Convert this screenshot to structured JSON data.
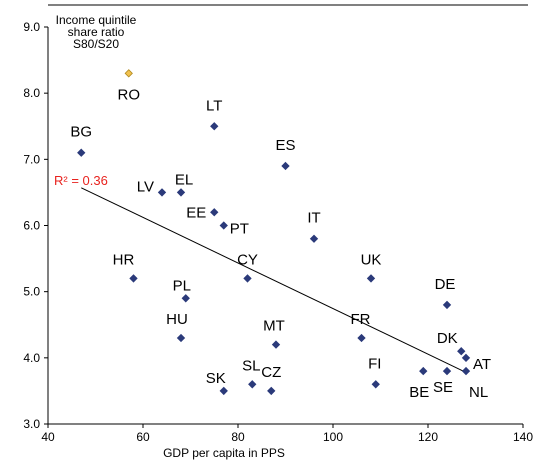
{
  "chart_data": {
    "type": "scatter",
    "title": "",
    "ylabel_lines": [
      "Income quintile",
      "share ratio",
      "S80/S20"
    ],
    "xlabel": "GDP per capita in PPS",
    "xlim": [
      40,
      140
    ],
    "ylim": [
      3.0,
      9.0
    ],
    "x_ticks": [
      40,
      60,
      80,
      100,
      120,
      140
    ],
    "y_ticks": [
      "3.0",
      "4.0",
      "5.0",
      "6.0",
      "7.0",
      "8.0",
      "9.0"
    ],
    "grid": false,
    "highlight_color": "#f2c14e",
    "marker_color": "#2b3a7a",
    "r2_color": "#e8231f",
    "r2_label": "R² = 0.36",
    "trendline": {
      "x": [
        47,
        128
      ],
      "y": [
        6.57,
        3.78
      ]
    },
    "points": [
      {
        "label": "RO",
        "x": 57,
        "y": 8.3,
        "highlight": true
      },
      {
        "label": "BG",
        "x": 47,
        "y": 7.1
      },
      {
        "label": "LT",
        "x": 75,
        "y": 7.5
      },
      {
        "label": "ES",
        "x": 90,
        "y": 6.9
      },
      {
        "label": "LV",
        "x": 64,
        "y": 6.5
      },
      {
        "label": "EL",
        "x": 68,
        "y": 6.5
      },
      {
        "label": "EE",
        "x": 75,
        "y": 6.2
      },
      {
        "label": "PT",
        "x": 77,
        "y": 6.0
      },
      {
        "label": "IT",
        "x": 96,
        "y": 5.8
      },
      {
        "label": "HR",
        "x": 58,
        "y": 5.2
      },
      {
        "label": "CY",
        "x": 82,
        "y": 5.2
      },
      {
        "label": "UK",
        "x": 108,
        "y": 5.2
      },
      {
        "label": "DE",
        "x": 124,
        "y": 4.8
      },
      {
        "label": "PL",
        "x": 69,
        "y": 4.9
      },
      {
        "label": "HU",
        "x": 68,
        "y": 4.3
      },
      {
        "label": "MT",
        "x": 88,
        "y": 4.2
      },
      {
        "label": "FR",
        "x": 106,
        "y": 4.3
      },
      {
        "label": "DK",
        "x": 127,
        "y": 4.1
      },
      {
        "label": "AT",
        "x": 128,
        "y": 4.0
      },
      {
        "label": "NL",
        "x": 128,
        "y": 3.8
      },
      {
        "label": "SE",
        "x": 124,
        "y": 3.8
      },
      {
        "label": "BE",
        "x": 119,
        "y": 3.8
      },
      {
        "label": "FI",
        "x": 109,
        "y": 3.6
      },
      {
        "label": "SL",
        "x": 83,
        "y": 3.6
      },
      {
        "label": "CZ",
        "x": 87,
        "y": 3.5
      },
      {
        "label": "SK",
        "x": 77,
        "y": 3.5
      }
    ]
  }
}
